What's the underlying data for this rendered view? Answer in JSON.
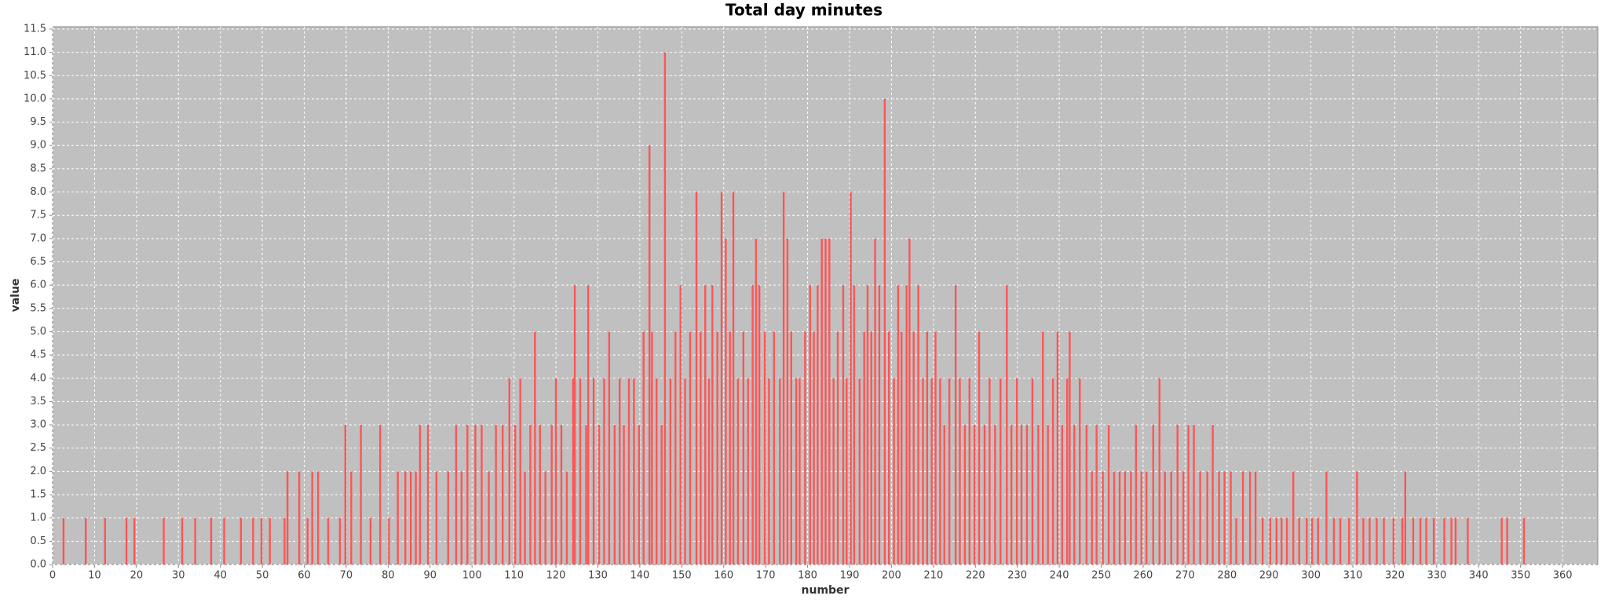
{
  "chart_data": {
    "type": "bar",
    "title": "Total day minutes",
    "x_label": "number",
    "y_label": "value",
    "color": "#ff5555",
    "background": "#c0c0c0",
    "grid": true,
    "xlim": [
      0,
      368.4
    ],
    "ylim": [
      0,
      11.55
    ],
    "xticks": [
      0,
      10,
      20,
      30,
      40,
      50,
      60,
      70,
      80,
      90,
      100,
      110,
      120,
      130,
      140,
      150,
      160,
      170,
      180,
      190,
      200,
      210,
      220,
      230,
      240,
      250,
      260,
      270,
      280,
      290,
      300,
      310,
      320,
      330,
      340,
      350,
      360
    ],
    "yticks": [
      {
        "value": 0,
        "label": "0.0"
      },
      {
        "value": 0.5,
        "label": "0.5"
      },
      {
        "value": 1,
        "label": "1.0"
      },
      {
        "value": 1.5,
        "label": "1.5"
      },
      {
        "value": 2,
        "label": "2.0"
      },
      {
        "value": 2.5,
        "label": "2.5"
      },
      {
        "value": 3,
        "label": "3.0"
      },
      {
        "value": 3.5,
        "label": "3.5"
      },
      {
        "value": 4,
        "label": "4.0"
      },
      {
        "value": 4.5,
        "label": "4.5"
      },
      {
        "value": 5,
        "label": "5.0"
      },
      {
        "value": 5.5,
        "label": "5.5"
      },
      {
        "value": 6,
        "label": "6.0"
      },
      {
        "value": 6.5,
        "label": "6.5"
      },
      {
        "value": 7,
        "label": "7.0"
      },
      {
        "value": 7.5,
        "label": "7.5"
      },
      {
        "value": 8,
        "label": "8.0"
      },
      {
        "value": 8.5,
        "label": "8.5"
      },
      {
        "value": 9,
        "label": "9.0"
      },
      {
        "value": 9.5,
        "label": "9.5"
      },
      {
        "value": 10,
        "label": "10.0"
      },
      {
        "value": 10.5,
        "label": "10.5"
      },
      {
        "value": 11,
        "label": "11.0"
      },
      {
        "value": 11.5,
        "label": "11.5"
      }
    ],
    "x": [
      2.6,
      7.9,
      12.5,
      17.6,
      19.5,
      26.5,
      30.9,
      34,
      37.8,
      40.9,
      44.9,
      47.8,
      49.8,
      51.8,
      55.3,
      56,
      58.8,
      60.8,
      61.9,
      63.3,
      65.7,
      68.5,
      69.8,
      71.2,
      73.5,
      75.8,
      78.1,
      80.2,
      82.3,
      84.1,
      85.4,
      86.6,
      87.6,
      89.5,
      91.5,
      94.3,
      96.2,
      97.5,
      98.9,
      100.8,
      102.3,
      104,
      105.7,
      107.3,
      108.9,
      110.3,
      111.5,
      112.6,
      113.9,
      115,
      116.2,
      117.5,
      119,
      120,
      121.3,
      122.6,
      124.1,
      124.5,
      125.8,
      127.2,
      127.7,
      129,
      130.3,
      131.5,
      132.7,
      134,
      135.2,
      136.2,
      137.4,
      138.6,
      139.8,
      140.9,
      142.3,
      142.9,
      144,
      145.2,
      146,
      147.3,
      148.5,
      149.7,
      150.8,
      152,
      153.5,
      154.5,
      155.6,
      156.5,
      157.3,
      158.5,
      159.5,
      160.5,
      161.5,
      162.3,
      163.4,
      164.7,
      165.8,
      166.9,
      167.7,
      168.5,
      169.8,
      170.8,
      172,
      173.4,
      174.3,
      175.2,
      176.1,
      177.3,
      178.1,
      179.4,
      180.6,
      181.5,
      182.4,
      183.4,
      184.3,
      185.2,
      186.2,
      187.2,
      188.5,
      189.3,
      190.3,
      191.1,
      192.4,
      193.5,
      194.3,
      195.2,
      196.1,
      197.1,
      198.4,
      199.4,
      200.6,
      201.6,
      202.4,
      203.6,
      204.3,
      205.3,
      206.4,
      207.5,
      208.5,
      209.6,
      210.5,
      211.6,
      212.6,
      213.8,
      215.3,
      216.3,
      217.5,
      218.6,
      219.8,
      220.9,
      222.2,
      223.4,
      224.7,
      226,
      227.5,
      228.6,
      229.9,
      231,
      232.3,
      233.6,
      235,
      236.1,
      237.3,
      238.5,
      239.6,
      240.7,
      241.9,
      242.5,
      243.6,
      244.9,
      246.5,
      247.8,
      248.9,
      250.4,
      251.8,
      253.1,
      254.4,
      255.7,
      257.1,
      258.3,
      259.6,
      260.8,
      262.4,
      263.9,
      265.2,
      266.7,
      268.2,
      269.6,
      270.8,
      272.1,
      273.6,
      275.3,
      276.6,
      278.1,
      279.4,
      280.9,
      282.2,
      283.8,
      285.5,
      286.8,
      288.5,
      290.3,
      291.8,
      293,
      294.3,
      295.8,
      297.2,
      299,
      300.3,
      301.7,
      303.7,
      305.5,
      307,
      309.1,
      311,
      312.5,
      314,
      315.7,
      317.4,
      319.7,
      321.8,
      322.5,
      324.4,
      326.1,
      327.5,
      329.3,
      331.8,
      333.5,
      334.5,
      337.4,
      345.5,
      346.8,
      350.8
    ],
    "values": [
      1,
      1,
      1,
      1,
      1,
      1,
      1,
      1,
      1,
      1,
      1,
      1,
      1,
      1,
      1,
      2,
      2,
      1,
      2,
      2,
      1,
      1,
      3,
      2,
      3,
      1,
      3,
      1,
      2,
      2,
      2,
      2,
      3,
      3,
      2,
      2,
      3,
      2,
      3,
      3,
      3,
      2,
      3,
      3,
      4,
      3,
      4,
      2,
      3,
      5,
      3,
      2,
      3,
      4,
      3,
      2,
      4,
      6,
      4,
      3,
      6,
      4,
      3,
      4,
      5,
      3,
      4,
      3,
      4,
      4,
      3,
      5,
      9,
      5,
      4,
      3,
      11,
      4,
      5,
      6,
      4,
      5,
      8,
      5,
      6,
      4,
      6,
      5,
      8,
      7,
      5,
      8,
      4,
      5,
      4,
      6,
      7,
      6,
      5,
      4,
      5,
      4,
      8,
      7,
      5,
      4,
      4,
      5,
      6,
      5,
      6,
      7,
      7,
      7,
      4,
      5,
      6,
      4,
      8,
      6,
      4,
      5,
      6,
      5,
      7,
      6,
      10,
      5,
      4,
      6,
      5,
      6,
      7,
      5,
      6,
      4,
      5,
      4,
      5,
      4,
      3,
      4,
      6,
      4,
      3,
      4,
      3,
      5,
      3,
      4,
      3,
      4,
      6,
      3,
      4,
      3,
      3,
      4,
      3,
      5,
      3,
      4,
      5,
      3,
      4,
      5,
      3,
      4,
      3,
      2,
      3,
      2,
      3,
      2,
      2,
      2,
      2,
      3,
      2,
      2,
      3,
      4,
      2,
      2,
      3,
      2,
      3,
      3,
      2,
      2,
      3,
      2,
      2,
      2,
      1,
      2,
      2,
      2,
      1,
      1,
      1,
      1,
      1,
      2,
      1,
      1,
      1,
      1,
      2,
      1,
      1,
      1,
      2,
      1,
      1,
      1,
      1,
      1,
      1,
      2,
      1,
      1,
      1,
      1,
      1,
      1,
      1,
      1,
      1,
      1,
      1
    ]
  }
}
